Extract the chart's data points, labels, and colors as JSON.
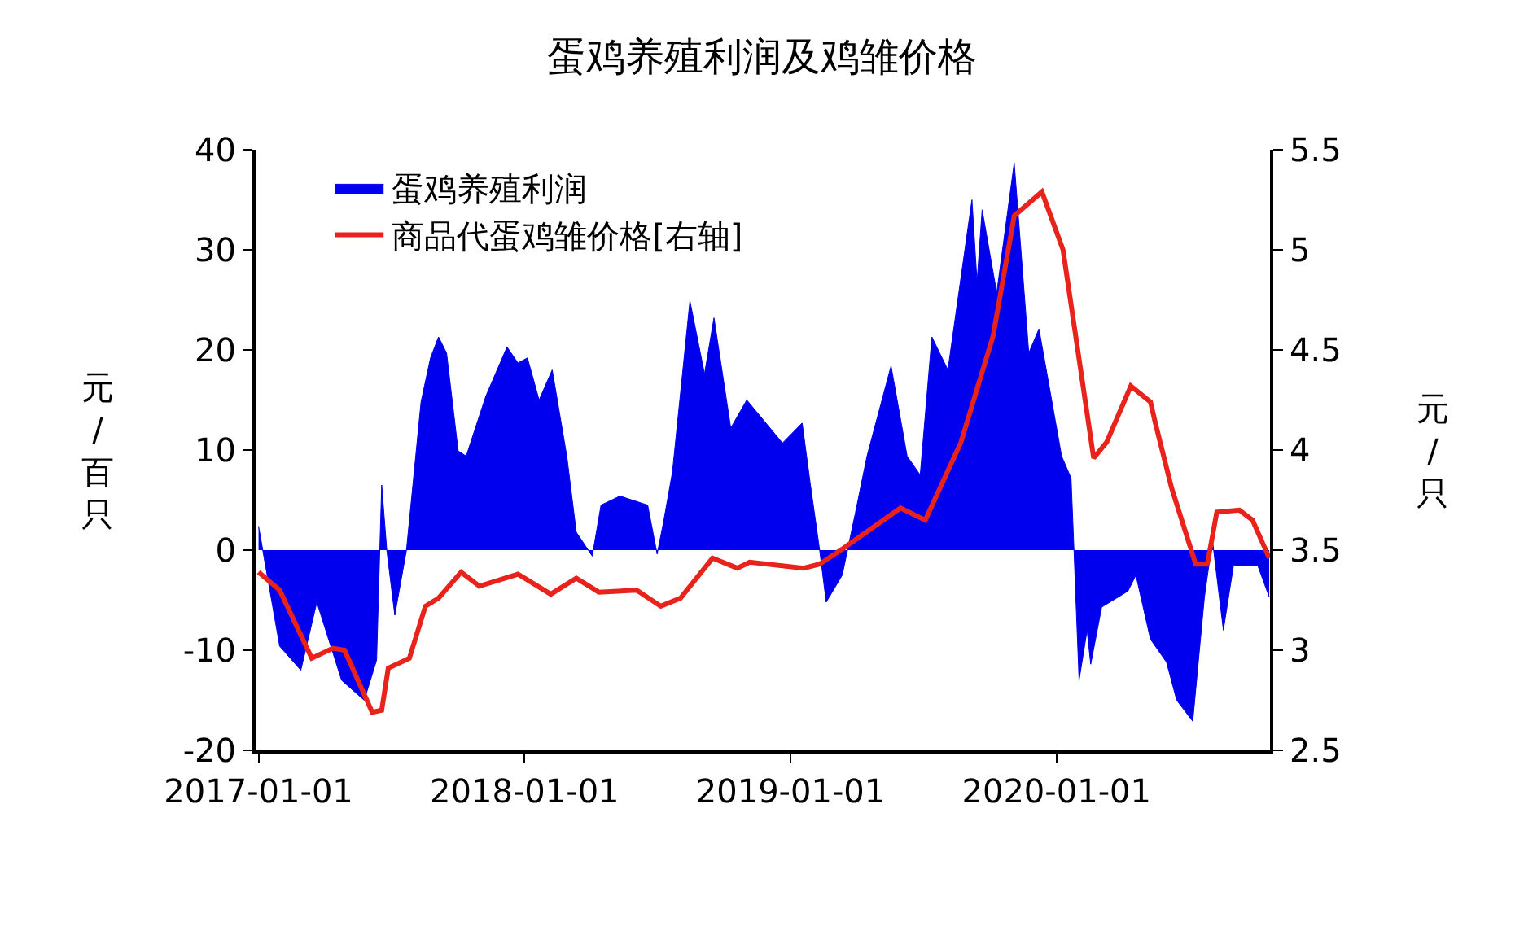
{
  "chart_data": {
    "type": "area",
    "title": "蛋鸡养殖利润及鸡雏价格",
    "ylabel": "元/百只",
    "y2label": "元/只",
    "xlim": [
      "2016-12-28",
      "2020-10-20"
    ],
    "xticks": [
      {
        "value": "2017-01-01",
        "label": "2017-01-01"
      },
      {
        "value": "2018-01-01",
        "label": "2018-01-01"
      },
      {
        "value": "2019-01-01",
        "label": "2019-01-01"
      },
      {
        "value": "2020-01-01",
        "label": "2020-01-01"
      }
    ],
    "ylim": [
      -20,
      40
    ],
    "yticks": [
      -20,
      -10,
      0,
      10,
      20,
      30,
      40
    ],
    "y2lim": [
      2.5,
      5.5
    ],
    "y2ticks": [
      2.5,
      3,
      3.5,
      4,
      4.5,
      5,
      5.5
    ],
    "legend": "top left",
    "series": [
      {
        "name": "蛋鸡养殖利润",
        "color": "#0000ee",
        "x": [
          "2017-01-01",
          "2017-01-08",
          "2017-01-30",
          "2017-02-28",
          "2017-03-22",
          "2017-04-25",
          "2017-05-26",
          "2017-06-12",
          "2017-06-19",
          "2017-06-26",
          "2017-07-07",
          "2017-07-23",
          "2017-08-12",
          "2017-08-25",
          "2017-09-05",
          "2017-09-16",
          "2017-10-02",
          "2017-10-13",
          "2017-11-09",
          "2017-12-08",
          "2017-12-23",
          "2018-01-05",
          "2018-01-21",
          "2018-02-08",
          "2018-02-28",
          "2018-03-13",
          "2018-04-04",
          "2018-04-16",
          "2018-05-12",
          "2018-06-19",
          "2018-07-02",
          "2018-07-11",
          "2018-07-23",
          "2018-08-16",
          "2018-09-05",
          "2018-09-18",
          "2018-10-11",
          "2018-11-02",
          "2018-12-21",
          "2019-01-17",
          "2019-01-28",
          "2019-02-10",
          "2019-02-19",
          "2019-03-13",
          "2019-03-31",
          "2019-04-16",
          "2019-05-19",
          "2019-06-10",
          "2019-06-28",
          "2019-07-14",
          "2019-08-05",
          "2019-09-07",
          "2019-09-14",
          "2019-09-21",
          "2019-10-11",
          "2019-11-04",
          "2019-11-24",
          "2019-12-08",
          "2020-01-08",
          "2020-01-21",
          "2020-01-25",
          "2020-02-01",
          "2020-02-12",
          "2020-02-17",
          "2020-03-03",
          "2020-04-08",
          "2020-04-19",
          "2020-05-09",
          "2020-05-31",
          "2020-06-14",
          "2020-07-06",
          "2020-07-22",
          "2020-08-02",
          "2020-08-17",
          "2020-08-31",
          "2020-10-03",
          "2020-10-19"
        ],
        "values": [
          2.4,
          -0.5,
          -9.6,
          -12,
          -5.2,
          -13,
          -15,
          -11,
          6.5,
          0,
          -6.5,
          0,
          14.8,
          19.2,
          21.3,
          19.7,
          9.9,
          9.4,
          15.4,
          20.3,
          18.7,
          19.2,
          15,
          18,
          9.4,
          1.8,
          -0.6,
          4.5,
          5.4,
          4.5,
          -0.4,
          2.9,
          7.8,
          24.9,
          17.6,
          23.2,
          12.2,
          15,
          10.7,
          12.7,
          6.7,
          0,
          -5.2,
          -2.5,
          3.7,
          9.4,
          18.4,
          9.4,
          7.5,
          21.3,
          18,
          35,
          26.8,
          34,
          25.7,
          38.7,
          19.7,
          22.1,
          9.4,
          7.2,
          0,
          -13,
          -8,
          -11.4,
          -5.7,
          -4.1,
          -2.5,
          -8.9,
          -11.2,
          -15,
          -17.1,
          -4.7,
          1,
          -8,
          -1.5,
          -1.5,
          -4.7
        ]
      },
      {
        "name": "商品代蛋鸡雏价格[右轴]",
        "type": "line",
        "axis": "y2",
        "color": "#e8231b",
        "x": [
          "2017-01-01",
          "2017-01-30",
          "2017-03-15",
          "2017-04-13",
          "2017-04-29",
          "2017-06-06",
          "2017-06-19",
          "2017-06-28",
          "2017-07-27",
          "2017-08-18",
          "2017-09-05",
          "2017-10-06",
          "2017-10-31",
          "2017-12-23",
          "2018-02-06",
          "2018-03-13",
          "2018-04-13",
          "2018-06-04",
          "2018-07-07",
          "2018-08-03",
          "2018-09-16",
          "2018-10-20",
          "2018-11-06",
          "2019-01-19",
          "2019-02-10",
          "2019-03-15",
          "2019-06-01",
          "2019-07-05",
          "2019-08-23",
          "2019-10-06",
          "2019-11-04",
          "2019-12-12",
          "2020-01-10",
          "2020-02-21",
          "2020-03-10",
          "2020-04-12",
          "2020-05-09",
          "2020-05-16",
          "2020-06-07",
          "2020-07-10",
          "2020-07-26",
          "2020-08-08",
          "2020-09-08",
          "2020-09-26",
          "2020-10-19"
        ],
        "values": [
          3.39,
          3.3,
          2.96,
          3.01,
          3.0,
          2.69,
          2.7,
          2.91,
          2.96,
          3.22,
          3.26,
          3.39,
          3.32,
          3.38,
          3.28,
          3.36,
          3.29,
          3.3,
          3.22,
          3.26,
          3.46,
          3.41,
          3.44,
          3.41,
          3.43,
          3.51,
          3.71,
          3.65,
          4.04,
          4.57,
          5.17,
          5.29,
          5.0,
          3.96,
          4.04,
          4.32,
          4.24,
          4.13,
          3.81,
          3.43,
          3.43,
          3.69,
          3.7,
          3.65,
          3.46
        ]
      }
    ]
  }
}
